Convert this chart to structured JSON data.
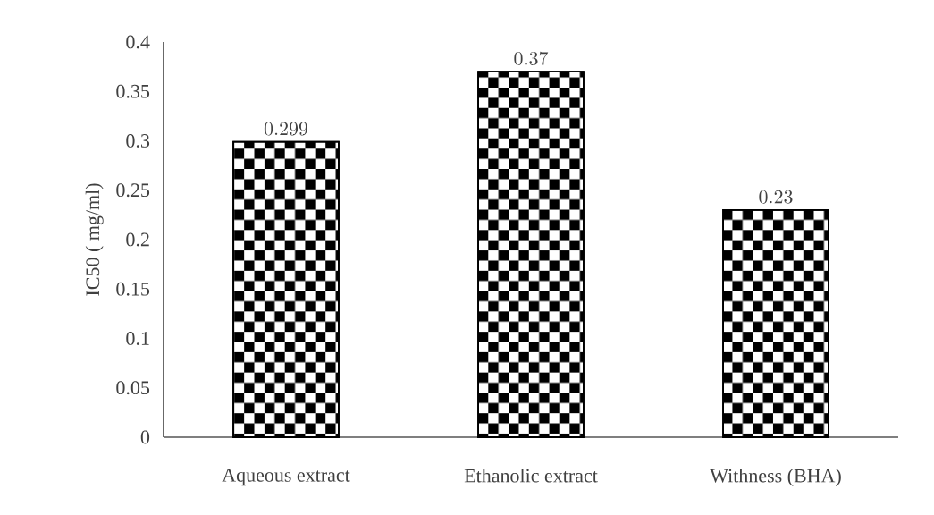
{
  "chart_data": {
    "type": "bar",
    "ylabel": "IC50 ( mg/ml)",
    "categories": [
      "Aqueous extract",
      "Ethanolic extract",
      "Withness (BHA)"
    ],
    "values": [
      0.299,
      0.37,
      0.23
    ],
    "color": "#000000",
    "ylim": [
      0,
      0.4
    ],
    "yticks": [
      0,
      0.05,
      0.1,
      0.15,
      0.2,
      0.25,
      0.3,
      0.35,
      0.4
    ],
    "data_labels": true,
    "grid": false
  }
}
